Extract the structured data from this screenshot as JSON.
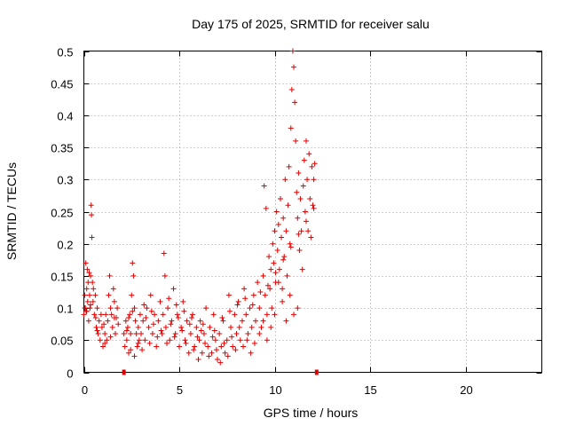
{
  "chart_data": {
    "type": "scatter",
    "title": "Day 175 of 2025, SRMTID for receiver salu",
    "xlabel": "GPS time / hours",
    "ylabel": "SRMTID / TECUs",
    "xlim": [
      0,
      24
    ],
    "ylim": [
      0,
      0.5
    ],
    "x_ticks": [
      0,
      5,
      10,
      15,
      20
    ],
    "y_ticks": [
      0,
      0.05,
      0.1,
      0.15,
      0.2,
      0.25,
      0.3,
      0.35,
      0.4,
      0.45,
      0.5
    ],
    "grid": true,
    "marker": "plus",
    "series_color": "#e00000",
    "series": [
      {
        "name": "SRMTID",
        "points": [
          [
            0.0,
            0.09
          ],
          [
            0.05,
            0.12
          ],
          [
            0.08,
            0.1
          ],
          [
            0.1,
            0.17
          ],
          [
            0.12,
            0.095
          ],
          [
            0.15,
            0.13
          ],
          [
            0.18,
            0.16
          ],
          [
            0.2,
            0.11
          ],
          [
            0.22,
            0.14
          ],
          [
            0.25,
            0.08
          ],
          [
            0.28,
            0.155
          ],
          [
            0.3,
            0.12
          ],
          [
            0.32,
            0.1
          ],
          [
            0.35,
            0.15
          ],
          [
            0.38,
            0.26
          ],
          [
            0.4,
            0.245
          ],
          [
            0.42,
            0.21
          ],
          [
            0.45,
            0.14
          ],
          [
            0.48,
            0.11
          ],
          [
            0.5,
            0.13
          ],
          [
            0.55,
            0.09
          ],
          [
            0.6,
            0.12
          ],
          [
            0.62,
            0.085
          ],
          [
            0.65,
            0.07
          ],
          [
            0.7,
            0.1
          ],
          [
            0.75,
            0.06
          ],
          [
            0.8,
            0.08
          ],
          [
            0.85,
            0.05
          ],
          [
            0.9,
            0.09
          ],
          [
            0.95,
            0.07
          ],
          [
            1.0,
            0.04
          ],
          [
            1.05,
            0.075
          ],
          [
            1.1,
            0.06
          ],
          [
            1.15,
            0.09
          ],
          [
            1.2,
            0.05
          ],
          [
            1.25,
            0.08
          ],
          [
            1.3,
            0.12
          ],
          [
            1.35,
            0.15
          ],
          [
            1.4,
            0.1
          ],
          [
            1.45,
            0.09
          ],
          [
            1.5,
            0.07
          ],
          [
            1.55,
            0.13
          ],
          [
            1.6,
            0.11
          ],
          [
            1.65,
            0.06
          ],
          [
            1.7,
            0.085
          ],
          [
            1.75,
            0.1
          ],
          [
            1.8,
            0.075
          ],
          [
            0.05,
            0.1
          ],
          [
            0.15,
            0.095
          ],
          [
            0.35,
            0.105
          ],
          [
            0.7,
            0.065
          ],
          [
            1.1,
            0.045
          ],
          [
            1.4,
            0.055
          ],
          [
            1.6,
            0.085
          ],
          [
            2.1,
            0.06
          ],
          [
            2.15,
            0.04
          ],
          [
            2.2,
            0.08
          ],
          [
            2.25,
            0.05
          ],
          [
            2.3,
            0.07
          ],
          [
            2.35,
            0.03
          ],
          [
            2.4,
            0.09
          ],
          [
            2.45,
            0.06
          ],
          [
            2.5,
            0.12
          ],
          [
            2.55,
            0.17
          ],
          [
            2.6,
            0.15
          ],
          [
            2.65,
            0.1
          ],
          [
            2.7,
            0.08
          ],
          [
            2.75,
            0.06
          ],
          [
            2.8,
            0.04
          ],
          [
            2.85,
            0.07
          ],
          [
            2.9,
            0.05
          ],
          [
            2.95,
            0.09
          ],
          [
            3.0,
            0.06
          ],
          [
            3.1,
            0.08
          ],
          [
            3.2,
            0.05
          ],
          [
            3.3,
            0.1
          ],
          [
            3.4,
            0.07
          ],
          [
            3.5,
            0.12
          ],
          [
            3.6,
            0.06
          ],
          [
            3.7,
            0.09
          ],
          [
            3.8,
            0.04
          ],
          [
            3.9,
            0.08
          ],
          [
            4.0,
            0.11
          ],
          [
            4.1,
            0.06
          ],
          [
            4.15,
            0.09
          ],
          [
            4.2,
            0.185
          ],
          [
            4.25,
            0.15
          ],
          [
            4.3,
            0.07
          ],
          [
            4.4,
            0.1
          ],
          [
            4.5,
            0.05
          ],
          [
            4.6,
            0.08
          ],
          [
            4.7,
            0.13
          ],
          [
            4.8,
            0.06
          ],
          [
            4.9,
            0.09
          ],
          [
            5.0,
            0.04
          ],
          [
            5.1,
            0.07
          ],
          [
            5.2,
            0.11
          ],
          [
            5.3,
            0.05
          ],
          [
            5.4,
            0.08
          ],
          [
            5.5,
            0.03
          ],
          [
            5.6,
            0.06
          ],
          [
            5.7,
            0.09
          ],
          [
            5.8,
            0.04
          ],
          [
            5.9,
            0.07
          ],
          [
            6.0,
            0.02
          ],
          [
            6.05,
            0.05
          ],
          [
            6.1,
            0.08
          ],
          [
            6.2,
            0.03
          ],
          [
            6.3,
            0.06
          ],
          [
            6.4,
            0.1
          ],
          [
            6.5,
            0.04
          ],
          [
            6.6,
            0.07
          ],
          [
            6.7,
            0.03
          ],
          [
            6.8,
            0.09
          ],
          [
            6.9,
            0.05
          ],
          [
            7.0,
            0.02
          ],
          [
            7.1,
            0.06
          ],
          [
            7.2,
            0.04
          ],
          [
            7.3,
            0.08
          ],
          [
            7.4,
            0.03
          ],
          [
            7.5,
            0.05
          ],
          [
            7.6,
            0.12
          ],
          [
            7.7,
            0.07
          ],
          [
            7.8,
            0.04
          ],
          [
            7.9,
            0.09
          ],
          [
            8.0,
            0.06
          ],
          [
            8.1,
            0.11
          ],
          [
            8.2,
            0.05
          ],
          [
            8.3,
            0.08
          ],
          [
            8.4,
            0.13
          ],
          [
            8.5,
            0.09
          ],
          [
            8.6,
            0.06
          ],
          [
            8.7,
            0.1
          ],
          [
            8.8,
            0.07
          ],
          [
            8.9,
            0.12
          ],
          [
            9.0,
            0.08
          ],
          [
            9.1,
            0.14
          ],
          [
            9.2,
            0.1
          ],
          [
            9.3,
            0.07
          ],
          [
            9.4,
            0.15
          ],
          [
            9.45,
            0.29
          ],
          [
            9.5,
            0.12
          ],
          [
            9.55,
            0.255
          ],
          [
            9.6,
            0.09
          ],
          [
            9.7,
            0.18
          ],
          [
            9.75,
            0.13
          ],
          [
            9.8,
            0.16
          ],
          [
            9.85,
            0.1
          ],
          [
            9.9,
            0.2
          ],
          [
            9.95,
            0.17
          ],
          [
            10.0,
            0.22
          ],
          [
            10.05,
            0.14
          ],
          [
            10.1,
            0.25
          ],
          [
            10.15,
            0.19
          ],
          [
            10.2,
            0.23
          ],
          [
            10.25,
            0.16
          ],
          [
            10.3,
            0.27
          ],
          [
            10.35,
            0.21
          ],
          [
            10.4,
            0.13
          ],
          [
            10.45,
            0.24
          ],
          [
            10.5,
            0.18
          ],
          [
            10.55,
            0.3
          ],
          [
            10.6,
            0.22
          ],
          [
            10.65,
            0.15
          ],
          [
            10.7,
            0.26
          ],
          [
            10.75,
            0.32
          ],
          [
            10.8,
            0.2
          ],
          [
            10.85,
            0.38
          ],
          [
            10.9,
            0.44
          ],
          [
            10.95,
            0.5
          ],
          [
            11.0,
            0.475
          ],
          [
            11.05,
            0.42
          ],
          [
            11.1,
            0.36
          ],
          [
            11.15,
            0.28
          ],
          [
            11.2,
            0.24
          ],
          [
            11.25,
            0.31
          ],
          [
            11.3,
            0.19
          ],
          [
            11.35,
            0.27
          ],
          [
            11.4,
            0.22
          ],
          [
            11.45,
            0.16
          ],
          [
            11.5,
            0.29
          ],
          [
            11.55,
            0.33
          ],
          [
            11.6,
            0.25
          ],
          [
            11.65,
            0.36
          ],
          [
            11.7,
            0.3
          ],
          [
            11.75,
            0.22
          ],
          [
            11.8,
            0.34
          ],
          [
            11.85,
            0.27
          ],
          [
            11.9,
            0.21
          ],
          [
            11.95,
            0.32
          ],
          [
            12.0,
            0.26
          ],
          [
            12.05,
            0.3
          ],
          [
            12.1,
            0.325
          ],
          [
            11.2,
            0.1
          ],
          [
            11.0,
            0.09
          ],
          [
            10.8,
            0.12
          ],
          [
            10.6,
            0.08
          ],
          [
            10.4,
            0.11
          ],
          [
            10.2,
            0.14
          ],
          [
            10.0,
            0.09
          ],
          [
            9.8,
            0.07
          ],
          [
            9.6,
            0.05
          ],
          [
            9.4,
            0.08
          ],
          [
            9.2,
            0.06
          ],
          [
            8.95,
            0.045
          ],
          [
            8.75,
            0.03
          ],
          [
            8.55,
            0.05
          ],
          [
            8.35,
            0.04
          ],
          [
            8.15,
            0.07
          ],
          [
            7.95,
            0.035
          ],
          [
            7.75,
            0.055
          ],
          [
            7.55,
            0.025
          ],
          [
            7.35,
            0.045
          ],
          [
            7.15,
            0.015
          ],
          [
            6.95,
            0.035
          ],
          [
            6.75,
            0.055
          ],
          [
            6.55,
            0.025
          ],
          [
            6.35,
            0.045
          ],
          [
            6.15,
            0.065
          ],
          [
            5.95,
            0.055
          ],
          [
            5.75,
            0.035
          ],
          [
            5.55,
            0.075
          ],
          [
            5.35,
            0.045
          ],
          [
            5.15,
            0.065
          ],
          [
            4.95,
            0.085
          ],
          [
            4.75,
            0.055
          ],
          [
            4.55,
            0.075
          ],
          [
            4.35,
            0.045
          ],
          [
            4.05,
            0.065
          ],
          [
            3.85,
            0.055
          ],
          [
            3.65,
            0.075
          ],
          [
            3.45,
            0.045
          ],
          [
            3.25,
            0.085
          ],
          [
            3.05,
            0.035
          ],
          [
            2.85,
            0.045
          ],
          [
            2.65,
            0.025
          ],
          [
            2.45,
            0.035
          ],
          [
            2.25,
            0.065
          ],
          [
            2.35,
            0.085
          ],
          [
            2.55,
            0.095
          ],
          [
            3.15,
            0.105
          ],
          [
            3.55,
            0.095
          ],
          [
            4.45,
            0.115
          ],
          [
            4.85,
            0.105
          ],
          [
            5.25,
            0.095
          ],
          [
            5.65,
            0.085
          ],
          [
            6.25,
            0.075
          ],
          [
            6.85,
            0.065
          ],
          [
            7.25,
            0.085
          ],
          [
            7.65,
            0.095
          ],
          [
            8.05,
            0.105
          ],
          [
            8.45,
            0.115
          ],
          [
            8.85,
            0.105
          ],
          [
            9.25,
            0.125
          ],
          [
            9.65,
            0.135
          ],
          [
            10.05,
            0.155
          ],
          [
            10.45,
            0.175
          ],
          [
            10.85,
            0.195
          ],
          [
            11.25,
            0.215
          ],
          [
            11.65,
            0.235
          ],
          [
            12.05,
            0.255
          ]
        ]
      }
    ],
    "data_gap_markers_x": [
      2.1,
      12.2
    ]
  }
}
